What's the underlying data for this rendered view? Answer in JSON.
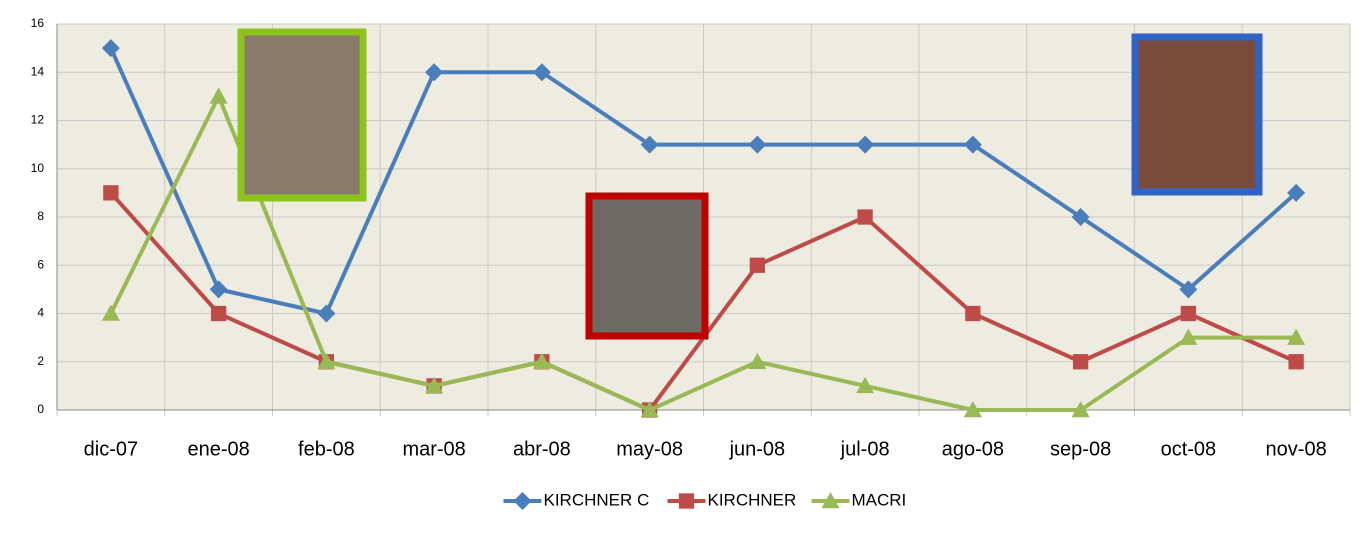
{
  "chart_data": {
    "type": "line",
    "categories": [
      "dic-07",
      "ene-08",
      "feb-08",
      "mar-08",
      "abr-08",
      "may-08",
      "jun-08",
      "jul-08",
      "ago-08",
      "sep-08",
      "oct-08",
      "nov-08"
    ],
    "series": [
      {
        "name": "KIRCHNER C",
        "color": "#4a7ebb",
        "marker": "diamond",
        "values": [
          15,
          5,
          4,
          14,
          14,
          11,
          11,
          11,
          11,
          8,
          5,
          9
        ]
      },
      {
        "name": "KIRCHNER",
        "color": "#be4b48",
        "marker": "square",
        "values": [
          9,
          4,
          2,
          1,
          2,
          0,
          6,
          8,
          4,
          2,
          4,
          2
        ]
      },
      {
        "name": "MACRI",
        "color": "#98b954",
        "marker": "triangle",
        "values": [
          4,
          13,
          2,
          1,
          2,
          0,
          2,
          1,
          0,
          0,
          3,
          3
        ]
      }
    ],
    "ylim": [
      0,
      16
    ],
    "yticks": [
      0,
      2,
      4,
      6,
      8,
      10,
      12,
      14,
      16
    ],
    "grid": true,
    "legend": "bottom"
  }
}
